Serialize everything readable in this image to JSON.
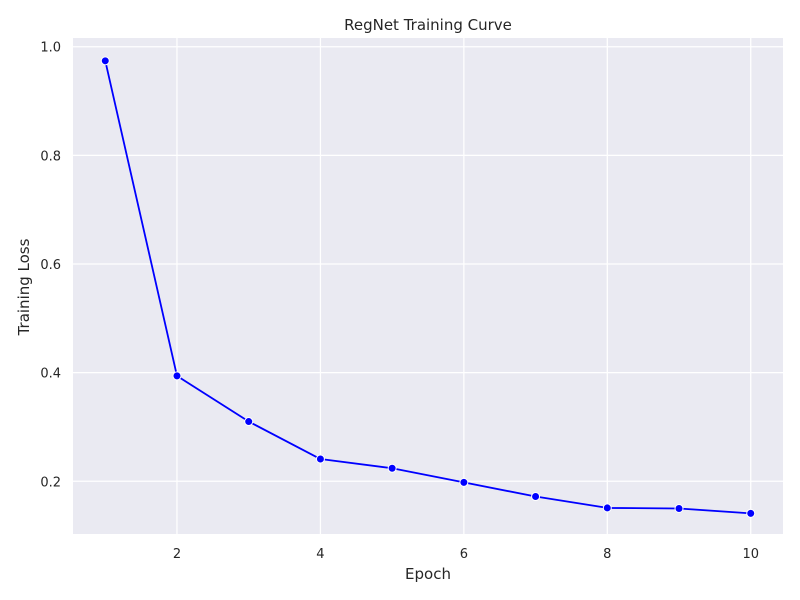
{
  "chart_data": {
    "type": "line",
    "title": "RegNet Training Curve",
    "xlabel": "Epoch",
    "ylabel": "Training Loss",
    "x": [
      1,
      2,
      3,
      4,
      5,
      6,
      7,
      8,
      9,
      10
    ],
    "series": [
      {
        "values": [
          0.974,
          0.394,
          0.31,
          0.241,
          0.224,
          0.198,
          0.172,
          0.151,
          0.15,
          0.141
        ]
      }
    ],
    "xlim": [
      0.55,
      10.45
    ],
    "ylim": [
      0.103,
      1.016
    ],
    "xticks": [
      2,
      4,
      6,
      8,
      10
    ],
    "yticks": [
      0.2,
      0.4,
      0.6,
      0.8,
      1.0
    ],
    "xtick_labels": [
      "2",
      "4",
      "6",
      "8",
      "10"
    ],
    "ytick_labels": [
      "0.2",
      "0.4",
      "0.6",
      "0.8",
      "1.0"
    ],
    "grid": true,
    "legend": "none",
    "colors": {
      "line": "#0000ff",
      "marker": "#0000ff",
      "marker_edge": "#ffffff",
      "plot_background": "#eaeaf2",
      "grid": "#ffffff",
      "text": "#262626"
    }
  }
}
